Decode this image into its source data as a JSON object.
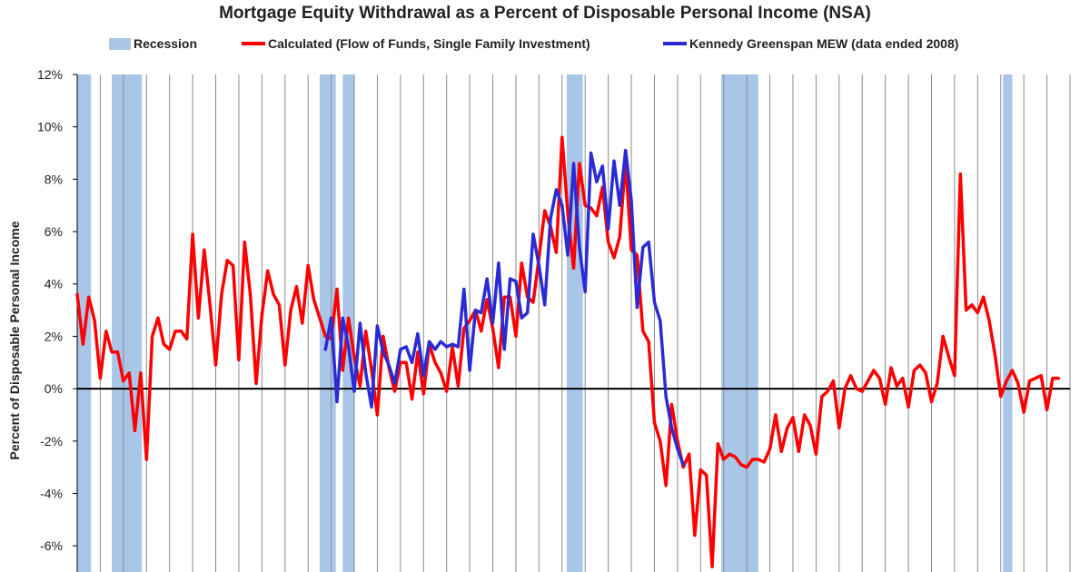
{
  "colors": {
    "recession": "#a9c5e8",
    "calculated": "#ff0000",
    "kennedy": "#2b2bd6",
    "grid": "#8c8c8c",
    "zero_line": "#000000"
  },
  "chart_data": {
    "type": "line",
    "title": "Mortgage Equity Withdrawal as a Percent of Disposable Personal Income (NSA)",
    "ylabel": "Percent of Disposable Personal Income",
    "xlabel": "",
    "ylim": [
      -7,
      12
    ],
    "yticks": [
      -6,
      -4,
      -2,
      0,
      2,
      4,
      6,
      8,
      10,
      12
    ],
    "ytick_labels": [
      "-6%",
      "-4%",
      "-2%",
      "0%",
      "2%",
      "4%",
      "6%",
      "8%",
      "10%",
      "12%"
    ],
    "grid": "vertical",
    "legend_position": "top",
    "x_domain": [
      1980.0,
      2023.0
    ],
    "recessions": [
      [
        1980.0,
        1980.6
      ],
      [
        1981.5,
        1982.8
      ],
      [
        1990.5,
        1991.2
      ],
      [
        1991.5,
        1992.0
      ],
      [
        2001.2,
        2001.9
      ],
      [
        2007.9,
        2009.5
      ],
      [
        2020.1,
        2020.5
      ]
    ],
    "legend": {
      "recession": "Recession",
      "calculated": "Calculated (Flow of Funds, Single Family Investment)",
      "kennedy": "Kennedy Greenspan MEW (data ended 2008)"
    },
    "series": [
      {
        "name": "Calculated (Flow of Funds, Single Family Investment)",
        "points": [
          [
            1980.0,
            3.6
          ],
          [
            1980.25,
            1.7
          ],
          [
            1980.5,
            3.5
          ],
          [
            1980.75,
            2.6
          ],
          [
            1981.0,
            0.4
          ],
          [
            1981.25,
            2.2
          ],
          [
            1981.5,
            1.4
          ],
          [
            1981.75,
            1.4
          ],
          [
            1982.0,
            0.3
          ],
          [
            1982.25,
            0.6
          ],
          [
            1982.5,
            -1.6
          ],
          [
            1982.75,
            0.6
          ],
          [
            1983.0,
            -2.7
          ],
          [
            1983.25,
            2.0
          ],
          [
            1983.5,
            2.7
          ],
          [
            1983.75,
            1.7
          ],
          [
            1984.0,
            1.5
          ],
          [
            1984.25,
            2.2
          ],
          [
            1984.5,
            2.2
          ],
          [
            1984.75,
            1.9
          ],
          [
            1985.0,
            5.9
          ],
          [
            1985.25,
            2.7
          ],
          [
            1985.5,
            5.3
          ],
          [
            1985.75,
            3.2
          ],
          [
            1986.0,
            0.9
          ],
          [
            1986.25,
            3.6
          ],
          [
            1986.5,
            4.9
          ],
          [
            1986.75,
            4.7
          ],
          [
            1987.0,
            1.1
          ],
          [
            1987.25,
            5.6
          ],
          [
            1987.5,
            3.6
          ],
          [
            1987.75,
            0.2
          ],
          [
            1988.0,
            2.8
          ],
          [
            1988.25,
            4.5
          ],
          [
            1988.5,
            3.6
          ],
          [
            1988.75,
            3.2
          ],
          [
            1989.0,
            0.9
          ],
          [
            1989.25,
            3.0
          ],
          [
            1989.5,
            3.9
          ],
          [
            1989.75,
            2.5
          ],
          [
            1990.0,
            4.7
          ],
          [
            1990.25,
            3.4
          ],
          [
            1990.5,
            2.7
          ],
          [
            1990.75,
            2.0
          ],
          [
            1991.0,
            1.9
          ],
          [
            1991.25,
            3.8
          ],
          [
            1991.5,
            0.7
          ],
          [
            1991.75,
            2.7
          ],
          [
            1992.0,
            1.2
          ],
          [
            1992.25,
            0.1
          ],
          [
            1992.5,
            2.2
          ],
          [
            1992.75,
            0.7
          ],
          [
            1993.0,
            -1.0
          ],
          [
            1993.25,
            2.0
          ],
          [
            1993.5,
            0.8
          ],
          [
            1993.75,
            -0.1
          ],
          [
            1994.0,
            1.0
          ],
          [
            1994.25,
            1.0
          ],
          [
            1994.5,
            -0.4
          ],
          [
            1994.75,
            1.4
          ],
          [
            1995.0,
            -0.2
          ],
          [
            1995.25,
            1.7
          ],
          [
            1995.5,
            1.0
          ],
          [
            1995.75,
            0.6
          ],
          [
            1996.0,
            -0.1
          ],
          [
            1996.25,
            1.6
          ],
          [
            1996.5,
            0.1
          ],
          [
            1996.75,
            2.3
          ],
          [
            1997.0,
            2.6
          ],
          [
            1997.25,
            3.0
          ],
          [
            1997.5,
            2.2
          ],
          [
            1997.75,
            3.4
          ],
          [
            1998.0,
            2.3
          ],
          [
            1998.25,
            0.8
          ],
          [
            1998.5,
            3.5
          ],
          [
            1998.75,
            3.5
          ],
          [
            1999.0,
            2.0
          ],
          [
            1999.25,
            4.8
          ],
          [
            1999.5,
            3.5
          ],
          [
            1999.75,
            3.3
          ],
          [
            2000.0,
            5.0
          ],
          [
            2000.25,
            6.8
          ],
          [
            2000.5,
            6.2
          ],
          [
            2000.75,
            5.2
          ],
          [
            2001.0,
            9.6
          ],
          [
            2001.25,
            6.7
          ],
          [
            2001.5,
            4.6
          ],
          [
            2001.75,
            8.6
          ],
          [
            2002.0,
            7.0
          ],
          [
            2002.25,
            6.9
          ],
          [
            2002.5,
            6.6
          ],
          [
            2002.75,
            7.7
          ],
          [
            2003.0,
            5.6
          ],
          [
            2003.25,
            5.0
          ],
          [
            2003.5,
            5.8
          ],
          [
            2003.75,
            8.7
          ],
          [
            2004.0,
            5.3
          ],
          [
            2004.25,
            5.1
          ],
          [
            2004.5,
            2.2
          ],
          [
            2004.75,
            1.8
          ],
          [
            2005.0,
            -1.3
          ],
          [
            2005.25,
            -2.0
          ],
          [
            2005.5,
            -3.7
          ],
          [
            2005.75,
            -0.6
          ],
          [
            2006.0,
            -2.0
          ],
          [
            2006.25,
            -3.0
          ],
          [
            2006.5,
            -2.5
          ],
          [
            2006.75,
            -5.6
          ],
          [
            2007.0,
            -3.1
          ],
          [
            2007.25,
            -3.3
          ],
          [
            2007.5,
            -6.8
          ],
          [
            2007.75,
            -2.1
          ],
          [
            2008.0,
            -2.7
          ],
          [
            2008.25,
            -2.5
          ],
          [
            2008.5,
            -2.6
          ],
          [
            2008.75,
            -2.9
          ],
          [
            2009.0,
            -3.0
          ],
          [
            2009.25,
            -2.7
          ],
          [
            2009.5,
            -2.7
          ],
          [
            2009.75,
            -2.8
          ],
          [
            2010.0,
            -2.3
          ],
          [
            2010.25,
            -1.0
          ],
          [
            2010.5,
            -2.4
          ],
          [
            2010.75,
            -1.5
          ],
          [
            2011.0,
            -1.1
          ],
          [
            2011.25,
            -2.4
          ],
          [
            2011.5,
            -1.0
          ],
          [
            2011.75,
            -1.4
          ],
          [
            2012.0,
            -2.5
          ],
          [
            2012.25,
            -0.3
          ],
          [
            2012.5,
            -0.1
          ],
          [
            2012.75,
            0.3
          ],
          [
            2013.0,
            -1.5
          ],
          [
            2013.25,
            0.0
          ],
          [
            2013.5,
            0.5
          ],
          [
            2013.75,
            0.0
          ],
          [
            2014.0,
            -0.1
          ],
          [
            2014.25,
            0.3
          ],
          [
            2014.5,
            0.7
          ],
          [
            2014.75,
            0.4
          ],
          [
            2015.0,
            -0.6
          ],
          [
            2015.25,
            0.8
          ],
          [
            2015.5,
            0.1
          ],
          [
            2015.75,
            0.4
          ],
          [
            2016.0,
            -0.7
          ],
          [
            2016.25,
            0.7
          ],
          [
            2016.5,
            0.9
          ],
          [
            2016.75,
            0.6
          ],
          [
            2017.0,
            -0.5
          ],
          [
            2017.25,
            0.2
          ],
          [
            2017.5,
            2.0
          ],
          [
            2017.75,
            1.2
          ],
          [
            2018.0,
            0.5
          ],
          [
            2018.25,
            8.2
          ],
          [
            2018.5,
            3.0
          ],
          [
            2018.75,
            3.2
          ],
          [
            2019.0,
            2.9
          ],
          [
            2019.25,
            3.5
          ],
          [
            2019.5,
            2.6
          ],
          [
            2019.75,
            1.3
          ],
          [
            2020.0,
            -0.3
          ],
          [
            2020.25,
            0.3
          ],
          [
            2020.5,
            0.7
          ],
          [
            2020.75,
            0.2
          ],
          [
            2021.0,
            -0.9
          ],
          [
            2021.25,
            0.3
          ],
          [
            2021.5,
            0.4
          ],
          [
            2021.75,
            0.5
          ],
          [
            2022.0,
            -0.8
          ],
          [
            2022.25,
            0.4
          ],
          [
            2022.5,
            0.4
          ]
        ]
      },
      {
        "name": "Kennedy Greenspan MEW (data ended 2008)",
        "points": [
          [
            1990.75,
            1.5
          ],
          [
            1991.0,
            2.7
          ],
          [
            1991.25,
            -0.5
          ],
          [
            1991.5,
            2.7
          ],
          [
            1991.75,
            1.6
          ],
          [
            1992.0,
            -0.1
          ],
          [
            1992.25,
            2.5
          ],
          [
            1992.5,
            0.6
          ],
          [
            1992.75,
            -0.7
          ],
          [
            1993.0,
            2.4
          ],
          [
            1993.25,
            1.4
          ],
          [
            1993.5,
            0.9
          ],
          [
            1993.75,
            0.2
          ],
          [
            1994.0,
            1.5
          ],
          [
            1994.25,
            1.6
          ],
          [
            1994.5,
            1.0
          ],
          [
            1994.75,
            2.1
          ],
          [
            1995.0,
            0.5
          ],
          [
            1995.25,
            1.8
          ],
          [
            1995.5,
            1.5
          ],
          [
            1995.75,
            1.8
          ],
          [
            1996.0,
            1.6
          ],
          [
            1996.25,
            1.7
          ],
          [
            1996.5,
            1.6
          ],
          [
            1996.75,
            3.8
          ],
          [
            1997.0,
            0.7
          ],
          [
            1997.25,
            3.0
          ],
          [
            1997.5,
            2.9
          ],
          [
            1997.75,
            4.2
          ],
          [
            1998.0,
            2.5
          ],
          [
            1998.25,
            4.8
          ],
          [
            1998.5,
            1.5
          ],
          [
            1998.75,
            4.2
          ],
          [
            1999.0,
            4.1
          ],
          [
            1999.25,
            2.7
          ],
          [
            1999.5,
            2.9
          ],
          [
            1999.75,
            5.9
          ],
          [
            2000.0,
            4.7
          ],
          [
            2000.25,
            3.2
          ],
          [
            2000.5,
            6.5
          ],
          [
            2000.75,
            7.6
          ],
          [
            2001.0,
            7.0
          ],
          [
            2001.25,
            5.1
          ],
          [
            2001.5,
            8.6
          ],
          [
            2001.75,
            5.4
          ],
          [
            2002.0,
            3.7
          ],
          [
            2002.25,
            9.0
          ],
          [
            2002.5,
            7.9
          ],
          [
            2002.75,
            8.5
          ],
          [
            2003.0,
            6.1
          ],
          [
            2003.25,
            8.7
          ],
          [
            2003.5,
            7.0
          ],
          [
            2003.75,
            9.1
          ],
          [
            2004.0,
            7.2
          ],
          [
            2004.25,
            3.1
          ],
          [
            2004.5,
            5.4
          ],
          [
            2004.75,
            5.6
          ],
          [
            2005.0,
            3.3
          ],
          [
            2005.25,
            2.6
          ],
          [
            2005.5,
            -0.3
          ],
          [
            2005.75,
            -1.5
          ],
          [
            2006.0,
            -2.3
          ],
          [
            2006.25,
            -2.9
          ]
        ]
      }
    ]
  }
}
